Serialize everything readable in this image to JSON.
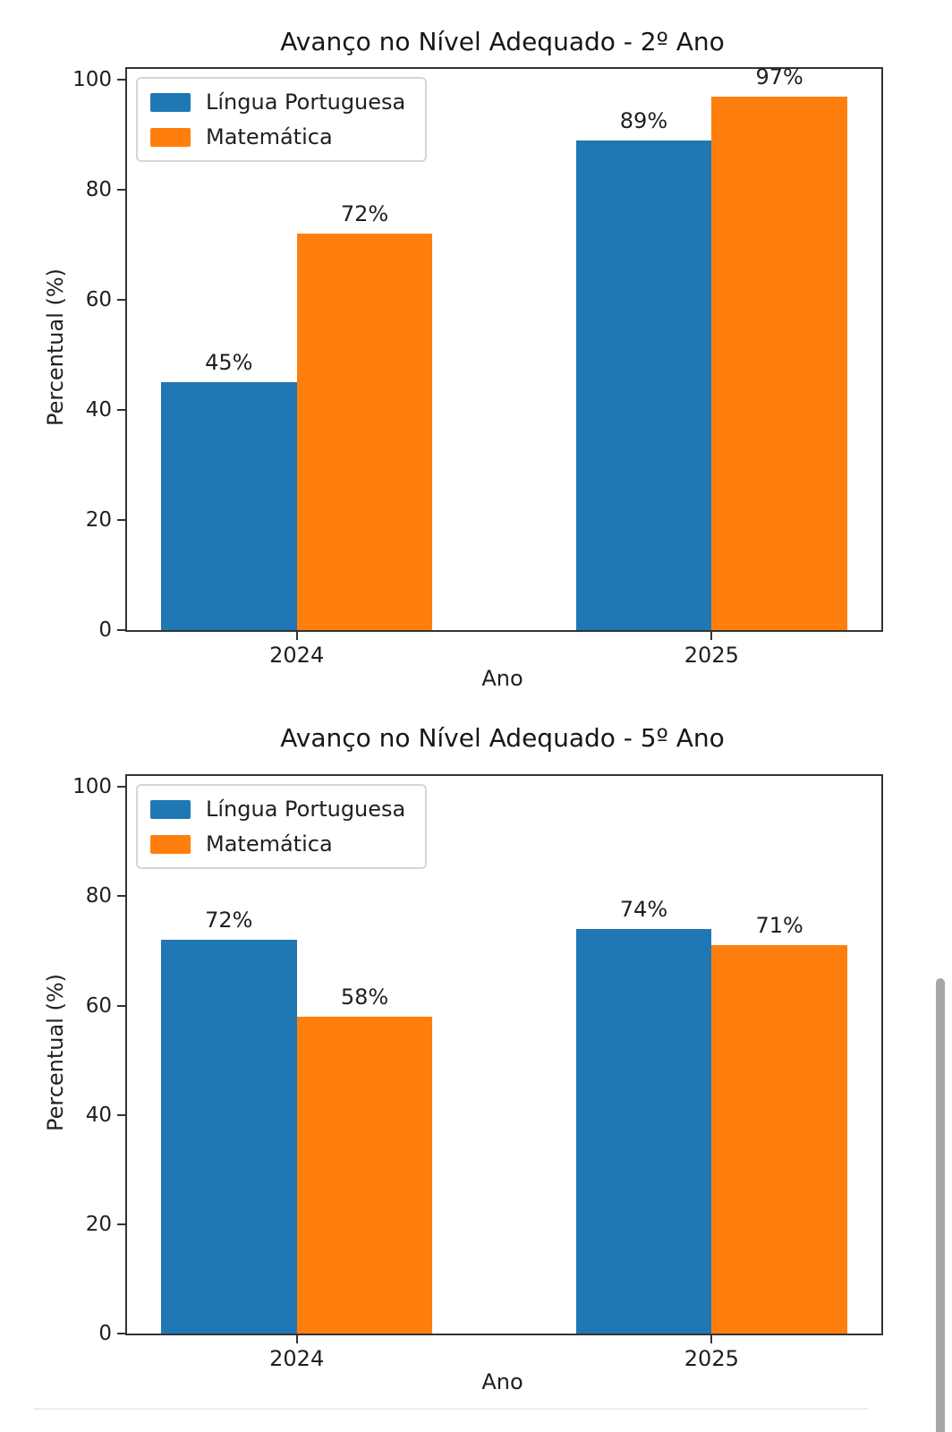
{
  "page": {
    "background": "#ffffff"
  },
  "scrollbar": {
    "thumb_color": "#a6a6a6"
  },
  "chart_data": [
    {
      "type": "bar",
      "title": "Avanço no Nível Adequado - 2º Ano",
      "categories": [
        "2024",
        "2025"
      ],
      "series": [
        {
          "name": "Língua Portuguesa",
          "color": "#1f77b4",
          "values": [
            45,
            89
          ]
        },
        {
          "name": "Matemática",
          "color": "#ff7f0e",
          "values": [
            72,
            97
          ]
        }
      ],
      "value_labels": [
        [
          "45%",
          "89%"
        ],
        [
          "72%",
          "97%"
        ]
      ],
      "value_label_suffix": "%",
      "xlabel": "Ano",
      "ylabel": "Percentual (%)",
      "yticks": [
        0,
        20,
        40,
        60,
        80,
        100
      ],
      "ylim": [
        0,
        102
      ],
      "grid": false,
      "legend_position": "upper left"
    },
    {
      "type": "bar",
      "title": "Avanço no Nível Adequado - 5º Ano",
      "categories": [
        "2024",
        "2025"
      ],
      "series": [
        {
          "name": "Língua Portuguesa",
          "color": "#1f77b4",
          "values": [
            72,
            74
          ]
        },
        {
          "name": "Matemática",
          "color": "#ff7f0e",
          "values": [
            58,
            71
          ]
        }
      ],
      "value_labels": [
        [
          "72%",
          "74%"
        ],
        [
          "58%",
          "71%"
        ]
      ],
      "value_label_suffix": "%",
      "xlabel": "Ano",
      "ylabel": "Percentual (%)",
      "yticks": [
        0,
        20,
        40,
        60,
        80,
        100
      ],
      "ylim": [
        0,
        102
      ],
      "grid": false,
      "legend_position": "upper left"
    }
  ]
}
